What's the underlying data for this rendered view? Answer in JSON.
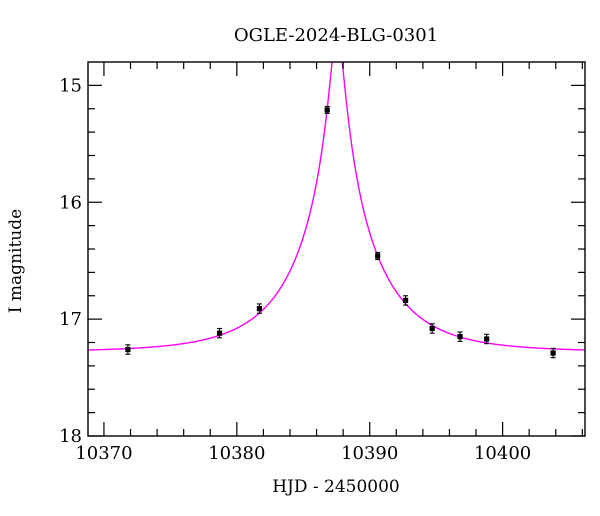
{
  "chart_data": {
    "type": "scatter",
    "title": "OGLE-2024-BLG-0301",
    "xlabel": "HJD - 2450000",
    "ylabel": "I magnitude",
    "x_range": [
      10368.8,
      10406.2
    ],
    "y_range": [
      14.8,
      18.0
    ],
    "y_axis_inverted": true,
    "grid": false,
    "x_major_ticks": [
      10370,
      10380,
      10390,
      10400
    ],
    "x_minor_step": 2,
    "y_major_ticks": [
      15,
      16,
      17,
      18
    ],
    "y_minor_step": 0.2,
    "curve_color": "#ff00ff",
    "point_color": "#000000",
    "frame_color": "#000000",
    "model": {
      "kind": "paczynski-microlensing",
      "t0": 10387.55,
      "tE": 6.0,
      "u0": 0.08,
      "baseline_mag": 17.28
    },
    "points": [
      {
        "x": 10371.8,
        "y": 17.26,
        "err": 0.04
      },
      {
        "x": 10378.7,
        "y": 17.12,
        "err": 0.04
      },
      {
        "x": 10381.7,
        "y": 16.91,
        "err": 0.04
      },
      {
        "x": 10386.8,
        "y": 15.21,
        "err": 0.03
      },
      {
        "x": 10390.6,
        "y": 16.46,
        "err": 0.03
      },
      {
        "x": 10392.7,
        "y": 16.84,
        "err": 0.04
      },
      {
        "x": 10394.7,
        "y": 17.08,
        "err": 0.04
      },
      {
        "x": 10396.8,
        "y": 17.15,
        "err": 0.04
      },
      {
        "x": 10398.8,
        "y": 17.17,
        "err": 0.04
      },
      {
        "x": 10403.8,
        "y": 17.29,
        "err": 0.04
      }
    ]
  }
}
